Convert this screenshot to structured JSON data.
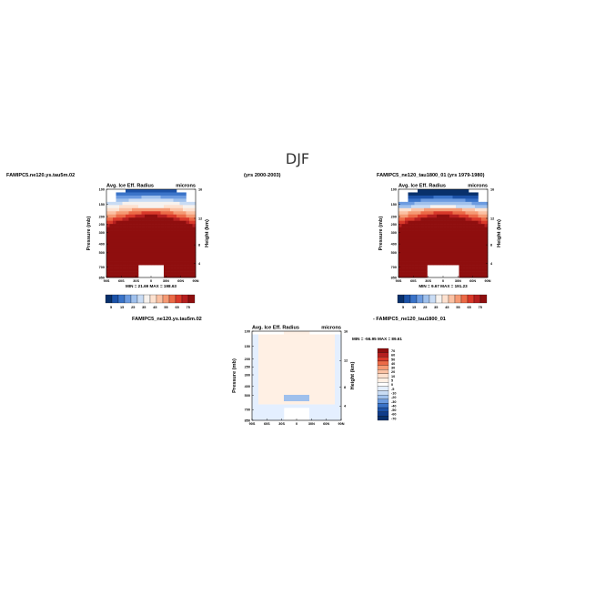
{
  "figure": {
    "title": "DJF",
    "period_label": "(yrs 2000-2003)",
    "diff_label": "FAMIPC5_ne120.ys.tau5m.02",
    "diff_minus": "- FAMIPC5_ne120_tau1800_01"
  },
  "chart_data": [
    {
      "type": "heatmap",
      "case": "FAMIPC5.ne120.ys.tau5m.02",
      "left_label": "Avg. Ice Eff. Radius",
      "right_label": "microns",
      "xlabel": "",
      "ylabel": "Pressure (mb)",
      "y2label": "Height (km)",
      "x_ticks": [
        "90S",
        "60S",
        "30S",
        "0",
        "30N",
        "60N",
        "90N"
      ],
      "y_ticks": [
        "100",
        "150",
        "200",
        "250",
        "300",
        "400",
        "500",
        "700",
        "850"
      ],
      "y2_ticks": [
        "16",
        "12",
        "8",
        "4"
      ],
      "min": "21.69",
      "max": "198.63",
      "stats_text": "MIN =  21.69   MAX = 198.63",
      "colorbar_orientation": "horizontal",
      "colorbar_labels": [
        "5",
        "15",
        "25",
        "35",
        "45",
        "55",
        "65",
        "75"
      ]
    },
    {
      "type": "heatmap",
      "case": "FAMIPC5_ne120_tau1800_01 (yrs 1979-1980)",
      "left_label": "Avg. Ice Eff. Radius",
      "right_label": "microns",
      "xlabel": "",
      "ylabel": "Pressure (mb)",
      "y2label": "Height (km)",
      "x_ticks": [
        "90S",
        "60S",
        "30S",
        "0",
        "30N",
        "60N",
        "90N"
      ],
      "y_ticks": [
        "100",
        "150",
        "200",
        "250",
        "300",
        "400",
        "500",
        "700",
        "850"
      ],
      "y2_ticks": [
        "16",
        "12",
        "8",
        "4"
      ],
      "min": "9.67",
      "max": "191.23",
      "stats_text": "MIN =  9.67   MAX = 191.23",
      "colorbar_orientation": "horizontal",
      "colorbar_labels": [
        "5",
        "15",
        "25",
        "35",
        "45",
        "55",
        "65",
        "75"
      ]
    },
    {
      "type": "heatmap",
      "case": "difference",
      "left_label": "Avg. Ice Eff. Radius",
      "right_label": "microns",
      "xlabel": "",
      "ylabel": "Pressure (mb)",
      "y2label": "Height (km)",
      "x_ticks": [
        "90S",
        "60S",
        "30S",
        "0",
        "30N",
        "60N",
        "90N"
      ],
      "y_ticks": [
        "100",
        "150",
        "200",
        "250",
        "300",
        "400",
        "500",
        "700",
        "850"
      ],
      "y2_ticks": [
        "16",
        "12",
        "8",
        "4"
      ],
      "min": "-56.95",
      "max": "89.61",
      "stats_text": "MIN = -56.95   MAX =  89.61",
      "colorbar_orientation": "vertical",
      "colorbar_labels": [
        "70",
        "60",
        "50",
        "40",
        "30",
        "20",
        "10",
        "5",
        "0",
        "-5",
        "-10",
        "-20",
        "-30",
        "-40",
        "-50",
        "-60",
        "-70"
      ]
    }
  ],
  "colors": {
    "abs_scale": [
      "#08306b",
      "#1c52a8",
      "#3a73c8",
      "#6c9be0",
      "#9fc0ec",
      "#c9dcf4",
      "#f7f2ee",
      "#fde1cf",
      "#fbc1a3",
      "#f59a74",
      "#ec6a47",
      "#d9392a",
      "#b51f1f",
      "#8f0e0e"
    ],
    "diff_scale": [
      "#8f0e0e",
      "#b51f1f",
      "#d9392a",
      "#ec6a47",
      "#f59a74",
      "#fbc1a3",
      "#fde1cf",
      "#fff0e4",
      "#ffffff",
      "#e4efff",
      "#c9dcf4",
      "#9fc0ec",
      "#6c9be0",
      "#3a73c8",
      "#1c52a8",
      "#0f3c8a",
      "#08306b"
    ]
  }
}
